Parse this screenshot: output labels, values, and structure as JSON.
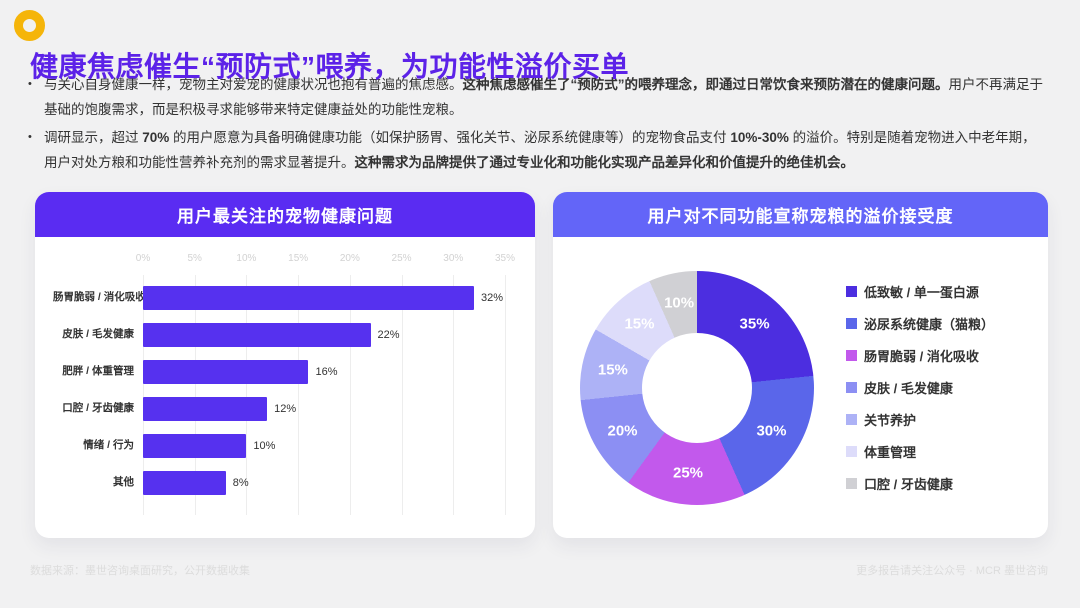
{
  "page": {
    "title": "健康焦虑催生“预防式”喂养，为功能性溢价买单",
    "footer_left": "数据来源：墨世咨询桌面研究，公开数据收集",
    "footer_right": "更多报告请关注公众号 · MCR 墨世咨询"
  },
  "colors": {
    "title_color": "#5c22e8",
    "left_header_bg": "#5a2cf2",
    "right_header_bg": "#6365f8",
    "ring_icon": "#f5b50a",
    "footer_text": "#dcdcdc"
  },
  "bullets": [
    {
      "segments": [
        {
          "text": "与关心自身健康一样，宠物主对爱宠的健康状况也抱有普遍的焦虑感。",
          "bold": false
        },
        {
          "text": "这种焦虑感催生了“预防式”的喂养理念，即通过日常饮食来预防潜在的健康问题。",
          "bold": true
        },
        {
          "text": "用户不再满足于基础的饱腹需求，而是积极寻求能够带来特定健康益处的功能性宠粮。",
          "bold": false
        }
      ]
    },
    {
      "segments": [
        {
          "text": "调研显示，超过 ",
          "bold": false
        },
        {
          "text": "70%",
          "bold": true
        },
        {
          "text": " 的用户愿意为具备明确健康功能（如保护肠胃、强化关节、泌尿系统健康等）的宠物食品支付 ",
          "bold": false
        },
        {
          "text": "10%-30%",
          "bold": true
        },
        {
          "text": " 的溢价。特别是随着宠物进入中老年期，用户对处方粮和功能性营养补充剂的需求显著提升。",
          "bold": false
        },
        {
          "text": "这种需求为品牌提供了通过专业化和功能化实现产品差异化和价值提升的绝佳机会。",
          "bold": true
        }
      ]
    }
  ],
  "chart_data": [
    {
      "type": "bar",
      "orientation": "horizontal",
      "title": "用户最关注的宠物健康问题",
      "categories": [
        "肠胃脆弱 / 消化吸收",
        "皮肤 / 毛发健康",
        "肥胖 / 体重管理",
        "口腔 / 牙齿健康",
        "情绪 / 行为",
        "其他"
      ],
      "values": [
        32,
        22,
        16,
        12,
        10,
        8
      ],
      "value_suffix": "%",
      "xlim": [
        0,
        35
      ],
      "x_ticks": [
        "0%",
        "5%",
        "10%",
        "15%",
        "20%",
        "25%",
        "30%",
        "35%"
      ],
      "grid": true,
      "bar_color": "#5631ef"
    },
    {
      "type": "pie",
      "subtype": "donut",
      "title": "用户对不同功能宣称宠粮的溢价接受度",
      "labels": [
        "低致敏 / 单一蛋白源",
        "泌尿系统健康（猫粮）",
        "肠胃脆弱 / 消化吸收",
        "皮肤 / 毛发健康",
        "关节养护",
        "体重管理",
        "口腔 / 牙齿健康"
      ],
      "values": [
        35,
        30,
        25,
        20,
        15,
        15,
        10
      ],
      "value_suffix": "%",
      "colors": [
        "#4c2ee0",
        "#5a66ea",
        "#c259ec",
        "#8c8ff3",
        "#adb2f6",
        "#dddcfa",
        "#d0d0d4"
      ],
      "legend_position": "right",
      "start_angle_deg": 0
    }
  ]
}
